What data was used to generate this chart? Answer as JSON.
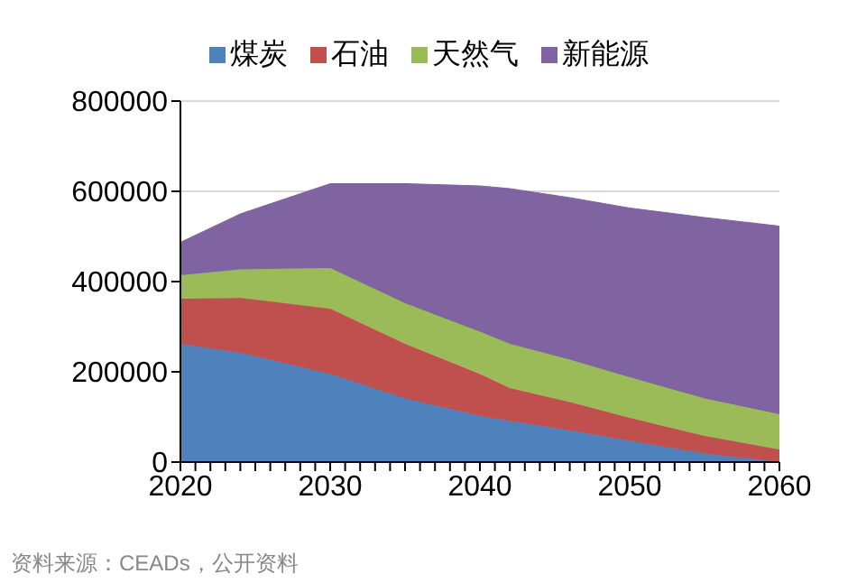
{
  "chart_data": {
    "type": "area",
    "stacked": true,
    "x": [
      2020,
      2024,
      2030,
      2035,
      2040,
      2042,
      2046,
      2050,
      2055,
      2060
    ],
    "series": [
      {
        "name": "煤炭",
        "color": "#4f81bd",
        "values": [
          262000,
          242000,
          195000,
          141000,
          102000,
          91000,
          70000,
          47000,
          19000,
          0
        ]
      },
      {
        "name": "石油",
        "color": "#c0504d",
        "values": [
          100000,
          122000,
          145000,
          121000,
          93000,
          73000,
          63000,
          51000,
          39000,
          28000
        ]
      },
      {
        "name": "天然气",
        "color": "#9bbb59",
        "values": [
          52000,
          63000,
          90000,
          90000,
          94000,
          98000,
          94000,
          90000,
          83000,
          78000
        ]
      },
      {
        "name": "新能源",
        "color": "#8064a2",
        "values": [
          73000,
          123000,
          187000,
          265000,
          323000,
          344000,
          359000,
          375000,
          401000,
          417000
        ]
      }
    ],
    "xlim": [
      2020,
      2060
    ],
    "xticks": [
      2020,
      {
        "value": 2021,
        "label": null
      },
      {
        "value": 2022,
        "label": null
      },
      {
        "value": 2023,
        "label": null
      },
      {
        "value": 2024,
        "label": null
      },
      {
        "value": 2025,
        "label": null
      },
      {
        "value": 2026,
        "label": null
      },
      {
        "value": 2027,
        "label": null
      },
      {
        "value": 2028,
        "label": null
      },
      {
        "value": 2029,
        "label": null
      },
      2030,
      {
        "value": 2031,
        "label": null
      },
      {
        "value": 2032,
        "label": null
      },
      {
        "value": 2033,
        "label": null
      },
      {
        "value": 2034,
        "label": null
      },
      {
        "value": 2035,
        "label": null
      },
      {
        "value": 2036,
        "label": null
      },
      {
        "value": 2037,
        "label": null
      },
      {
        "value": 2038,
        "label": null
      },
      {
        "value": 2039,
        "label": null
      },
      2040,
      {
        "value": 2041,
        "label": null
      },
      {
        "value": 2042,
        "label": null
      },
      {
        "value": 2043,
        "label": null
      },
      {
        "value": 2044,
        "label": null
      },
      {
        "value": 2045,
        "label": null
      },
      {
        "value": 2046,
        "label": null
      },
      {
        "value": 2047,
        "label": null
      },
      {
        "value": 2048,
        "label": null
      },
      {
        "value": 2049,
        "label": null
      },
      2050,
      {
        "value": 2051,
        "label": null
      },
      {
        "value": 2052,
        "label": null
      },
      {
        "value": 2053,
        "label": null
      },
      {
        "value": 2054,
        "label": null
      },
      {
        "value": 2055,
        "label": null
      },
      {
        "value": 2056,
        "label": null
      },
      {
        "value": 2057,
        "label": null
      },
      {
        "value": 2058,
        "label": null
      },
      {
        "value": 2059,
        "label": null
      },
      2060
    ],
    "ylim": [
      0,
      800000
    ],
    "yticks": [
      0,
      200000,
      400000,
      600000,
      800000
    ],
    "grid": "y",
    "legend": "top",
    "annotations": [
      "资料来源：CEADs，公开资料"
    ]
  }
}
